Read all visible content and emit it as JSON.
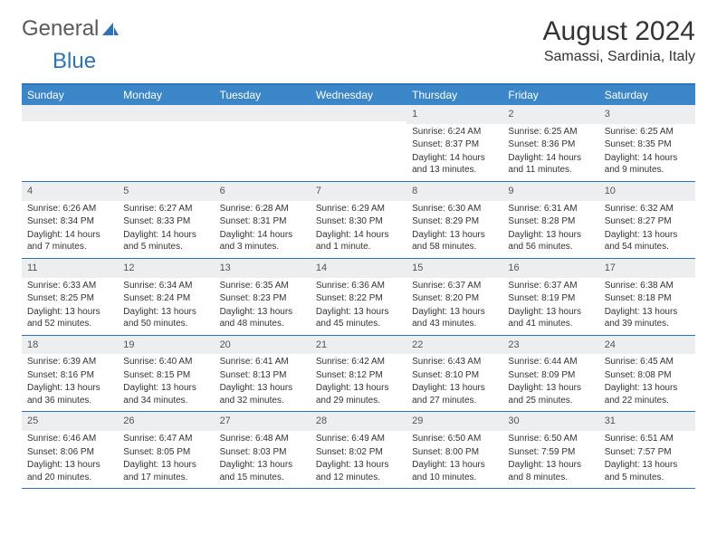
{
  "logo": {
    "text_general": "General",
    "text_blue": "Blue"
  },
  "header": {
    "month_title": "August 2024",
    "location": "Samassi, Sardinia, Italy"
  },
  "colors": {
    "header_bg": "#3b86c8",
    "border": "#2d73b8",
    "daynum_bg": "#eceef0",
    "text": "#333333"
  },
  "dow": [
    "Sunday",
    "Monday",
    "Tuesday",
    "Wednesday",
    "Thursday",
    "Friday",
    "Saturday"
  ],
  "weeks": [
    [
      {
        "n": "",
        "sunrise": "",
        "sunset": "",
        "daylight": ""
      },
      {
        "n": "",
        "sunrise": "",
        "sunset": "",
        "daylight": ""
      },
      {
        "n": "",
        "sunrise": "",
        "sunset": "",
        "daylight": ""
      },
      {
        "n": "",
        "sunrise": "",
        "sunset": "",
        "daylight": ""
      },
      {
        "n": "1",
        "sunrise": "Sunrise: 6:24 AM",
        "sunset": "Sunset: 8:37 PM",
        "daylight": "Daylight: 14 hours and 13 minutes."
      },
      {
        "n": "2",
        "sunrise": "Sunrise: 6:25 AM",
        "sunset": "Sunset: 8:36 PM",
        "daylight": "Daylight: 14 hours and 11 minutes."
      },
      {
        "n": "3",
        "sunrise": "Sunrise: 6:25 AM",
        "sunset": "Sunset: 8:35 PM",
        "daylight": "Daylight: 14 hours and 9 minutes."
      }
    ],
    [
      {
        "n": "4",
        "sunrise": "Sunrise: 6:26 AM",
        "sunset": "Sunset: 8:34 PM",
        "daylight": "Daylight: 14 hours and 7 minutes."
      },
      {
        "n": "5",
        "sunrise": "Sunrise: 6:27 AM",
        "sunset": "Sunset: 8:33 PM",
        "daylight": "Daylight: 14 hours and 5 minutes."
      },
      {
        "n": "6",
        "sunrise": "Sunrise: 6:28 AM",
        "sunset": "Sunset: 8:31 PM",
        "daylight": "Daylight: 14 hours and 3 minutes."
      },
      {
        "n": "7",
        "sunrise": "Sunrise: 6:29 AM",
        "sunset": "Sunset: 8:30 PM",
        "daylight": "Daylight: 14 hours and 1 minute."
      },
      {
        "n": "8",
        "sunrise": "Sunrise: 6:30 AM",
        "sunset": "Sunset: 8:29 PM",
        "daylight": "Daylight: 13 hours and 58 minutes."
      },
      {
        "n": "9",
        "sunrise": "Sunrise: 6:31 AM",
        "sunset": "Sunset: 8:28 PM",
        "daylight": "Daylight: 13 hours and 56 minutes."
      },
      {
        "n": "10",
        "sunrise": "Sunrise: 6:32 AM",
        "sunset": "Sunset: 8:27 PM",
        "daylight": "Daylight: 13 hours and 54 minutes."
      }
    ],
    [
      {
        "n": "11",
        "sunrise": "Sunrise: 6:33 AM",
        "sunset": "Sunset: 8:25 PM",
        "daylight": "Daylight: 13 hours and 52 minutes."
      },
      {
        "n": "12",
        "sunrise": "Sunrise: 6:34 AM",
        "sunset": "Sunset: 8:24 PM",
        "daylight": "Daylight: 13 hours and 50 minutes."
      },
      {
        "n": "13",
        "sunrise": "Sunrise: 6:35 AM",
        "sunset": "Sunset: 8:23 PM",
        "daylight": "Daylight: 13 hours and 48 minutes."
      },
      {
        "n": "14",
        "sunrise": "Sunrise: 6:36 AM",
        "sunset": "Sunset: 8:22 PM",
        "daylight": "Daylight: 13 hours and 45 minutes."
      },
      {
        "n": "15",
        "sunrise": "Sunrise: 6:37 AM",
        "sunset": "Sunset: 8:20 PM",
        "daylight": "Daylight: 13 hours and 43 minutes."
      },
      {
        "n": "16",
        "sunrise": "Sunrise: 6:37 AM",
        "sunset": "Sunset: 8:19 PM",
        "daylight": "Daylight: 13 hours and 41 minutes."
      },
      {
        "n": "17",
        "sunrise": "Sunrise: 6:38 AM",
        "sunset": "Sunset: 8:18 PM",
        "daylight": "Daylight: 13 hours and 39 minutes."
      }
    ],
    [
      {
        "n": "18",
        "sunrise": "Sunrise: 6:39 AM",
        "sunset": "Sunset: 8:16 PM",
        "daylight": "Daylight: 13 hours and 36 minutes."
      },
      {
        "n": "19",
        "sunrise": "Sunrise: 6:40 AM",
        "sunset": "Sunset: 8:15 PM",
        "daylight": "Daylight: 13 hours and 34 minutes."
      },
      {
        "n": "20",
        "sunrise": "Sunrise: 6:41 AM",
        "sunset": "Sunset: 8:13 PM",
        "daylight": "Daylight: 13 hours and 32 minutes."
      },
      {
        "n": "21",
        "sunrise": "Sunrise: 6:42 AM",
        "sunset": "Sunset: 8:12 PM",
        "daylight": "Daylight: 13 hours and 29 minutes."
      },
      {
        "n": "22",
        "sunrise": "Sunrise: 6:43 AM",
        "sunset": "Sunset: 8:10 PM",
        "daylight": "Daylight: 13 hours and 27 minutes."
      },
      {
        "n": "23",
        "sunrise": "Sunrise: 6:44 AM",
        "sunset": "Sunset: 8:09 PM",
        "daylight": "Daylight: 13 hours and 25 minutes."
      },
      {
        "n": "24",
        "sunrise": "Sunrise: 6:45 AM",
        "sunset": "Sunset: 8:08 PM",
        "daylight": "Daylight: 13 hours and 22 minutes."
      }
    ],
    [
      {
        "n": "25",
        "sunrise": "Sunrise: 6:46 AM",
        "sunset": "Sunset: 8:06 PM",
        "daylight": "Daylight: 13 hours and 20 minutes."
      },
      {
        "n": "26",
        "sunrise": "Sunrise: 6:47 AM",
        "sunset": "Sunset: 8:05 PM",
        "daylight": "Daylight: 13 hours and 17 minutes."
      },
      {
        "n": "27",
        "sunrise": "Sunrise: 6:48 AM",
        "sunset": "Sunset: 8:03 PM",
        "daylight": "Daylight: 13 hours and 15 minutes."
      },
      {
        "n": "28",
        "sunrise": "Sunrise: 6:49 AM",
        "sunset": "Sunset: 8:02 PM",
        "daylight": "Daylight: 13 hours and 12 minutes."
      },
      {
        "n": "29",
        "sunrise": "Sunrise: 6:50 AM",
        "sunset": "Sunset: 8:00 PM",
        "daylight": "Daylight: 13 hours and 10 minutes."
      },
      {
        "n": "30",
        "sunrise": "Sunrise: 6:50 AM",
        "sunset": "Sunset: 7:59 PM",
        "daylight": "Daylight: 13 hours and 8 minutes."
      },
      {
        "n": "31",
        "sunrise": "Sunrise: 6:51 AM",
        "sunset": "Sunset: 7:57 PM",
        "daylight": "Daylight: 13 hours and 5 minutes."
      }
    ]
  ]
}
